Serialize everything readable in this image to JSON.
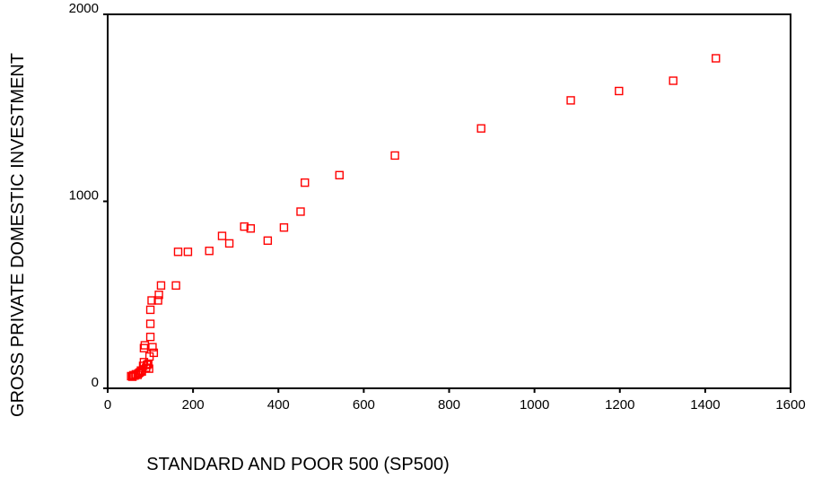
{
  "chart_data": {
    "type": "scatter",
    "xlabel": "STANDARD AND POOR 500 (SP500)",
    "ylabel": "GROSS PRIVATE DOMESTIC INVESTMENT",
    "xlim": [
      0,
      1600
    ],
    "ylim": [
      0,
      2000
    ],
    "xticks": [
      0,
      200,
      400,
      600,
      800,
      1000,
      1200,
      1400,
      1600
    ],
    "yticks": [
      0,
      1000,
      2000
    ],
    "grid": false,
    "marker": "open-square",
    "color": "#ff0000",
    "points": [
      [
        55,
        65
      ],
      [
        58,
        62
      ],
      [
        60,
        70
      ],
      [
        63,
        68
      ],
      [
        66,
        75
      ],
      [
        70,
        72
      ],
      [
        72,
        80
      ],
      [
        75,
        85
      ],
      [
        78,
        95
      ],
      [
        80,
        90
      ],
      [
        83,
        120
      ],
      [
        85,
        140
      ],
      [
        85,
        215
      ],
      [
        87,
        230
      ],
      [
        90,
        110
      ],
      [
        92,
        125
      ],
      [
        95,
        130
      ],
      [
        97,
        105
      ],
      [
        98,
        170
      ],
      [
        100,
        275
      ],
      [
        100,
        345
      ],
      [
        100,
        420
      ],
      [
        103,
        470
      ],
      [
        105,
        220
      ],
      [
        108,
        190
      ],
      [
        118,
        470
      ],
      [
        120,
        500
      ],
      [
        125,
        550
      ],
      [
        160,
        550
      ],
      [
        165,
        730
      ],
      [
        188,
        730
      ],
      [
        238,
        735
      ],
      [
        268,
        815
      ],
      [
        285,
        775
      ],
      [
        320,
        865
      ],
      [
        335,
        855
      ],
      [
        375,
        790
      ],
      [
        413,
        860
      ],
      [
        452,
        945
      ],
      [
        462,
        1100
      ],
      [
        543,
        1140
      ],
      [
        673,
        1245
      ],
      [
        875,
        1390
      ],
      [
        1085,
        1540
      ],
      [
        1198,
        1590
      ],
      [
        1325,
        1645
      ],
      [
        1425,
        1765
      ]
    ]
  }
}
